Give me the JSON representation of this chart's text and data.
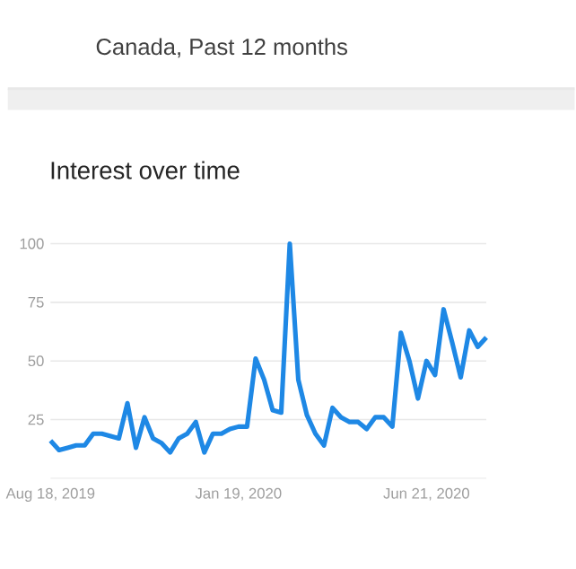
{
  "chart_data": {
    "type": "line",
    "subtitle": "Canada, Past 12 months",
    "title": "Interest over time",
    "categories": [
      "Aug 18, 2019",
      null,
      null,
      null,
      null,
      null,
      null,
      null,
      null,
      null,
      null,
      null,
      null,
      null,
      null,
      null,
      null,
      null,
      null,
      null,
      null,
      null,
      "Jan 19, 2020",
      null,
      null,
      null,
      null,
      null,
      null,
      null,
      null,
      null,
      null,
      null,
      null,
      null,
      null,
      null,
      null,
      null,
      null,
      null,
      null,
      null,
      "Jun 21, 2020",
      null,
      null,
      null,
      null,
      null,
      null,
      null
    ],
    "values": [
      16,
      12,
      13,
      14,
      14,
      19,
      19,
      18,
      17,
      32,
      13,
      26,
      17,
      15,
      11,
      17,
      19,
      24,
      11,
      19,
      19,
      21,
      22,
      22,
      51,
      42,
      29,
      28,
      100,
      42,
      27,
      19,
      14,
      30,
      26,
      24,
      24,
      21,
      26,
      26,
      22,
      62,
      50,
      34,
      50,
      44,
      72,
      58,
      43,
      63,
      56,
      60
    ],
    "color": "#1e88e5",
    "ylim": [
      0,
      100
    ],
    "yticks": [
      25,
      50,
      75,
      100
    ],
    "grid": "y",
    "marker": "none"
  }
}
